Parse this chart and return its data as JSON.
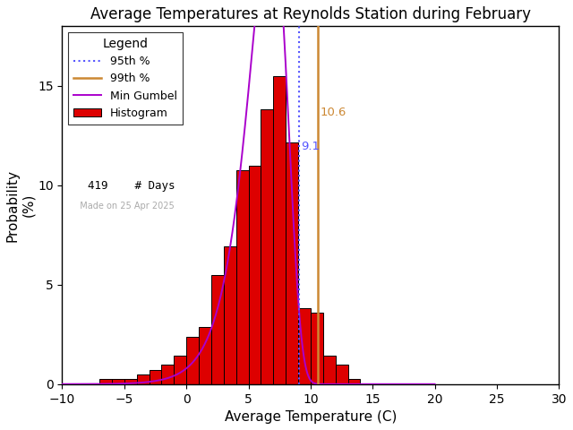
{
  "title": "Average Temperatures at Reynolds Station during February",
  "xlabel": "Average Temperature (C)",
  "ylabel": "Probability\n(%)",
  "xlim": [
    -10,
    30
  ],
  "ylim": [
    0,
    18
  ],
  "xticks": [
    -10,
    -5,
    0,
    5,
    10,
    15,
    20,
    25,
    30
  ],
  "yticks": [
    0,
    5,
    10,
    15
  ],
  "bar_edges": [
    -7,
    -6,
    -5,
    -4,
    -3,
    -2,
    -1,
    0,
    1,
    2,
    3,
    4,
    5,
    6,
    7,
    8,
    9,
    10,
    11,
    12,
    13,
    14,
    15
  ],
  "bar_heights": [
    0.24,
    0.24,
    0.24,
    0.48,
    0.72,
    0.96,
    1.43,
    2.39,
    2.87,
    5.49,
    6.92,
    10.74,
    11.0,
    13.84,
    15.51,
    12.17,
    3.82,
    3.58,
    1.43,
    0.96,
    0.24,
    0.0
  ],
  "bar_color": "#dd0000",
  "bar_edge_color": "#000000",
  "gumbel_mu": 6.8,
  "gumbel_beta": 1.55,
  "pct95_x": 9.1,
  "pct99_x": 10.6,
  "n_days": 419,
  "made_on": "Made on 25 Apr 2025",
  "legend_title": "Legend",
  "bg_color": "#ffffff",
  "axis_bg_color": "#ffffff",
  "dotted_line_color": "#5555ff",
  "solid_line_color": "#cc8833",
  "gumbel_line_color": "#aa00cc",
  "title_fontsize": 12,
  "label_fontsize": 11,
  "tick_fontsize": 10
}
